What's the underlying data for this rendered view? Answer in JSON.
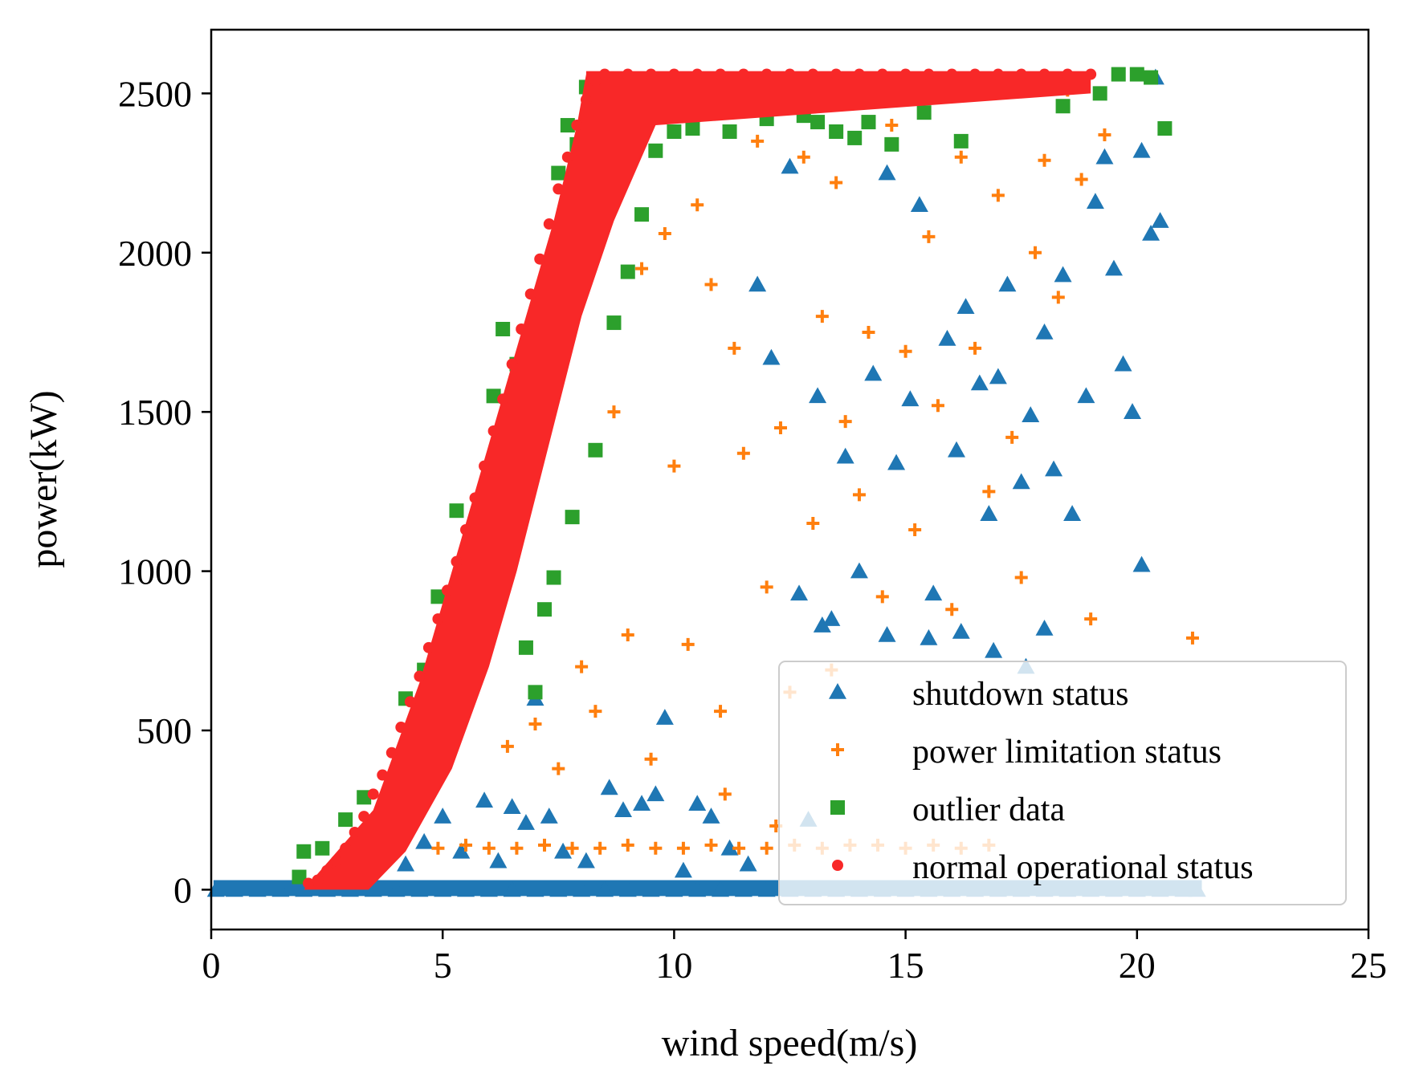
{
  "chart_data": {
    "type": "scatter",
    "title": "",
    "xlabel": "wind speed(m/s)",
    "ylabel": "power(kW)",
    "xlim": [
      0,
      25
    ],
    "ylim": [
      -125,
      2700
    ],
    "xticks": [
      0,
      5,
      10,
      15,
      20,
      25
    ],
    "yticks": [
      0,
      500,
      1000,
      1500,
      2000,
      2500
    ],
    "xtick_labels": [
      "0",
      "5",
      "10",
      "15",
      "20",
      "25"
    ],
    "ytick_labels": [
      "0",
      "500",
      "1000",
      "1500",
      "2000",
      "2500"
    ],
    "grid": false,
    "legend_position": "lower-right",
    "series": [
      {
        "name": "shutdown status",
        "marker": "triangle",
        "color": "#1f77b4",
        "points": [
          [
            0.1,
            0
          ],
          [
            0.5,
            0
          ],
          [
            1.0,
            0
          ],
          [
            1.5,
            0
          ],
          [
            2.0,
            0
          ],
          [
            2.5,
            0
          ],
          [
            3.0,
            0
          ],
          [
            3.5,
            0
          ],
          [
            4.0,
            0
          ],
          [
            4.5,
            0
          ],
          [
            5.0,
            0
          ],
          [
            5.5,
            0
          ],
          [
            6.0,
            0
          ],
          [
            6.5,
            0
          ],
          [
            7.0,
            0
          ],
          [
            7.5,
            0
          ],
          [
            8.0,
            0
          ],
          [
            8.5,
            0
          ],
          [
            9.0,
            0
          ],
          [
            9.5,
            0
          ],
          [
            10.0,
            0
          ],
          [
            10.5,
            0
          ],
          [
            11.0,
            0
          ],
          [
            11.5,
            0
          ],
          [
            12.0,
            0
          ],
          [
            12.5,
            0
          ],
          [
            13.0,
            0
          ],
          [
            13.5,
            0
          ],
          [
            14.0,
            0
          ],
          [
            14.5,
            0
          ],
          [
            15.0,
            0
          ],
          [
            15.5,
            0
          ],
          [
            16.0,
            0
          ],
          [
            16.5,
            0
          ],
          [
            17.0,
            0
          ],
          [
            17.5,
            0
          ],
          [
            18.0,
            0
          ],
          [
            18.5,
            0
          ],
          [
            19.0,
            0
          ],
          [
            19.5,
            0
          ],
          [
            20.0,
            0
          ],
          [
            20.5,
            0
          ],
          [
            21.0,
            0
          ],
          [
            21.3,
            0
          ],
          [
            4.2,
            80
          ],
          [
            4.6,
            150
          ],
          [
            5.0,
            230
          ],
          [
            5.4,
            120
          ],
          [
            5.9,
            280
          ],
          [
            6.2,
            90
          ],
          [
            6.5,
            260
          ],
          [
            6.8,
            210
          ],
          [
            7.0,
            600
          ],
          [
            7.3,
            230
          ],
          [
            7.6,
            120
          ],
          [
            8.1,
            90
          ],
          [
            8.6,
            320
          ],
          [
            8.9,
            250
          ],
          [
            9.3,
            270
          ],
          [
            9.8,
            540
          ],
          [
            10.2,
            60
          ],
          [
            10.8,
            230
          ],
          [
            11.2,
            130
          ],
          [
            11.6,
            80
          ],
          [
            11.8,
            1900
          ],
          [
            12.1,
            1670
          ],
          [
            12.5,
            2270
          ],
          [
            12.9,
            220
          ],
          [
            13.1,
            1550
          ],
          [
            13.4,
            850
          ],
          [
            13.7,
            1360
          ],
          [
            14.0,
            1000
          ],
          [
            14.3,
            1620
          ],
          [
            14.6,
            2250
          ],
          [
            14.8,
            1340
          ],
          [
            15.1,
            1540
          ],
          [
            15.3,
            2150
          ],
          [
            15.6,
            930
          ],
          [
            15.9,
            1730
          ],
          [
            16.1,
            1380
          ],
          [
            16.3,
            1830
          ],
          [
            16.6,
            1590
          ],
          [
            16.8,
            1180
          ],
          [
            17.0,
            1610
          ],
          [
            17.2,
            1900
          ],
          [
            17.5,
            1280
          ],
          [
            17.7,
            1490
          ],
          [
            18.0,
            1750
          ],
          [
            18.2,
            1320
          ],
          [
            18.4,
            1930
          ],
          [
            18.6,
            1180
          ],
          [
            18.9,
            1550
          ],
          [
            19.1,
            2160
          ],
          [
            19.3,
            2300
          ],
          [
            19.5,
            1950
          ],
          [
            19.7,
            1650
          ],
          [
            19.9,
            1500
          ],
          [
            20.1,
            2320
          ],
          [
            20.3,
            2060
          ],
          [
            20.5,
            2100
          ],
          [
            20.4,
            2550
          ],
          [
            20.1,
            1020
          ],
          [
            14.6,
            800
          ],
          [
            15.5,
            790
          ],
          [
            16.2,
            810
          ],
          [
            16.9,
            750
          ],
          [
            17.6,
            700
          ],
          [
            12.7,
            930
          ],
          [
            13.2,
            830
          ],
          [
            18.0,
            820
          ],
          [
            9.6,
            300
          ],
          [
            10.5,
            270
          ]
        ]
      },
      {
        "name": "power limitation status",
        "marker": "plus",
        "color": "#ff7f0e",
        "points": [
          [
            4.9,
            130
          ],
          [
            5.5,
            140
          ],
          [
            6.0,
            130
          ],
          [
            6.6,
            130
          ],
          [
            7.2,
            140
          ],
          [
            7.8,
            130
          ],
          [
            8.4,
            130
          ],
          [
            9.0,
            140
          ],
          [
            9.6,
            130
          ],
          [
            10.2,
            130
          ],
          [
            10.8,
            140
          ],
          [
            11.4,
            130
          ],
          [
            12.0,
            130
          ],
          [
            12.6,
            140
          ],
          [
            13.2,
            130
          ],
          [
            13.8,
            140
          ],
          [
            14.4,
            140
          ],
          [
            15.0,
            130
          ],
          [
            15.6,
            140
          ],
          [
            16.2,
            130
          ],
          [
            16.8,
            140
          ],
          [
            6.4,
            450
          ],
          [
            7.0,
            520
          ],
          [
            7.5,
            380
          ],
          [
            8.0,
            700
          ],
          [
            8.3,
            560
          ],
          [
            8.7,
            1500
          ],
          [
            9.0,
            800
          ],
          [
            9.3,
            1950
          ],
          [
            9.5,
            410
          ],
          [
            9.8,
            2060
          ],
          [
            10.0,
            1330
          ],
          [
            10.3,
            770
          ],
          [
            10.5,
            2150
          ],
          [
            10.8,
            1900
          ],
          [
            11.0,
            560
          ],
          [
            11.3,
            1700
          ],
          [
            11.5,
            1370
          ],
          [
            11.8,
            2350
          ],
          [
            12.0,
            950
          ],
          [
            12.3,
            1450
          ],
          [
            12.5,
            620
          ],
          [
            12.8,
            2300
          ],
          [
            13.0,
            1150
          ],
          [
            13.2,
            1800
          ],
          [
            13.5,
            2220
          ],
          [
            13.7,
            1470
          ],
          [
            14.0,
            1240
          ],
          [
            14.2,
            1750
          ],
          [
            14.5,
            920
          ],
          [
            14.7,
            2400
          ],
          [
            15.0,
            1690
          ],
          [
            15.2,
            1130
          ],
          [
            15.5,
            2050
          ],
          [
            15.7,
            1520
          ],
          [
            16.0,
            880
          ],
          [
            16.2,
            2300
          ],
          [
            16.5,
            1700
          ],
          [
            16.8,
            1250
          ],
          [
            17.0,
            2180
          ],
          [
            17.3,
            1420
          ],
          [
            17.5,
            980
          ],
          [
            17.8,
            2000
          ],
          [
            18.0,
            2290
          ],
          [
            18.3,
            1860
          ],
          [
            18.5,
            2510
          ],
          [
            18.8,
            2230
          ],
          [
            19.0,
            850
          ],
          [
            19.3,
            2370
          ],
          [
            21.2,
            790
          ],
          [
            13.4,
            690
          ],
          [
            11.1,
            300
          ],
          [
            12.2,
            200
          ]
        ]
      },
      {
        "name": "outlier data",
        "marker": "square",
        "color": "#2ca02c",
        "points": [
          [
            1.9,
            40
          ],
          [
            2.0,
            120
          ],
          [
            2.4,
            130
          ],
          [
            2.9,
            220
          ],
          [
            3.3,
            290
          ],
          [
            4.2,
            600
          ],
          [
            4.6,
            690
          ],
          [
            4.9,
            920
          ],
          [
            5.3,
            1190
          ],
          [
            5.7,
            1140
          ],
          [
            6.1,
            1550
          ],
          [
            6.3,
            1760
          ],
          [
            6.6,
            1650
          ],
          [
            7.0,
            1800
          ],
          [
            7.3,
            1960
          ],
          [
            7.5,
            2250
          ],
          [
            7.7,
            2400
          ],
          [
            7.9,
            2340
          ],
          [
            8.1,
            2520
          ],
          [
            8.4,
            2280
          ],
          [
            8.7,
            1780
          ],
          [
            9.0,
            1940
          ],
          [
            9.3,
            2120
          ],
          [
            9.6,
            2320
          ],
          [
            10.0,
            2380
          ],
          [
            10.4,
            2390
          ],
          [
            11.2,
            2380
          ],
          [
            12.0,
            2420
          ],
          [
            12.8,
            2430
          ],
          [
            13.1,
            2410
          ],
          [
            13.5,
            2380
          ],
          [
            13.9,
            2360
          ],
          [
            14.2,
            2410
          ],
          [
            14.7,
            2340
          ],
          [
            15.4,
            2440
          ],
          [
            16.2,
            2350
          ],
          [
            17.3,
            2530
          ],
          [
            18.4,
            2460
          ],
          [
            19.2,
            2500
          ],
          [
            19.6,
            2560
          ],
          [
            20.0,
            2560
          ],
          [
            20.3,
            2550
          ],
          [
            20.6,
            2390
          ],
          [
            7.0,
            620
          ],
          [
            7.2,
            880
          ],
          [
            7.4,
            980
          ],
          [
            7.8,
            1170
          ],
          [
            8.3,
            1380
          ],
          [
            6.8,
            760
          ],
          [
            6.4,
            1010
          ]
        ]
      },
      {
        "name": "normal operational status",
        "marker": "circle",
        "color": "#f82828",
        "points": [
          [
            2.1,
            20
          ],
          [
            2.3,
            30
          ],
          [
            2.5,
            60
          ],
          [
            2.7,
            90
          ],
          [
            2.9,
            130
          ],
          [
            3.1,
            180
          ],
          [
            3.3,
            230
          ],
          [
            3.5,
            300
          ],
          [
            3.7,
            360
          ],
          [
            3.9,
            430
          ],
          [
            4.1,
            510
          ],
          [
            4.3,
            590
          ],
          [
            4.5,
            670
          ],
          [
            4.7,
            760
          ],
          [
            4.9,
            850
          ],
          [
            5.1,
            940
          ],
          [
            5.3,
            1030
          ],
          [
            5.5,
            1130
          ],
          [
            5.7,
            1230
          ],
          [
            5.9,
            1330
          ],
          [
            6.1,
            1440
          ],
          [
            6.3,
            1540
          ],
          [
            6.5,
            1650
          ],
          [
            6.7,
            1760
          ],
          [
            6.9,
            1870
          ],
          [
            7.1,
            1980
          ],
          [
            7.3,
            2090
          ],
          [
            7.5,
            2200
          ],
          [
            7.7,
            2300
          ],
          [
            7.9,
            2400
          ],
          [
            8.1,
            2480
          ],
          [
            8.3,
            2540
          ],
          [
            8.5,
            2560
          ],
          [
            9.0,
            2560
          ],
          [
            9.5,
            2560
          ],
          [
            10.0,
            2560
          ],
          [
            10.5,
            2560
          ],
          [
            11.0,
            2560
          ],
          [
            11.5,
            2560
          ],
          [
            12.0,
            2560
          ],
          [
            12.5,
            2560
          ],
          [
            13.0,
            2560
          ],
          [
            13.5,
            2560
          ],
          [
            14.0,
            2560
          ],
          [
            14.5,
            2560
          ],
          [
            15.0,
            2560
          ],
          [
            15.5,
            2560
          ],
          [
            16.0,
            2560
          ],
          [
            16.5,
            2560
          ],
          [
            17.0,
            2560
          ],
          [
            17.5,
            2560
          ],
          [
            18.0,
            2560
          ],
          [
            18.5,
            2560
          ],
          [
            19.0,
            2560
          ]
        ]
      }
    ],
    "normal_band": {
      "left_edge": [
        [
          2.0,
          0
        ],
        [
          3.5,
          250
        ],
        [
          4.5,
          650
        ],
        [
          5.2,
          1000
        ],
        [
          6.0,
          1400
        ],
        [
          6.8,
          1800
        ],
        [
          7.4,
          2100
        ],
        [
          7.9,
          2400
        ],
        [
          8.1,
          2560
        ]
      ],
      "right_edge": [
        [
          3.4,
          0
        ],
        [
          4.2,
          120
        ],
        [
          5.2,
          380
        ],
        [
          6.0,
          700
        ],
        [
          6.6,
          1000
        ],
        [
          7.3,
          1400
        ],
        [
          8.0,
          1800
        ],
        [
          8.7,
          2100
        ],
        [
          9.6,
          2400
        ],
        [
          19.0,
          2500
        ],
        [
          19.0,
          2570
        ],
        [
          8.1,
          2570
        ]
      ]
    }
  }
}
